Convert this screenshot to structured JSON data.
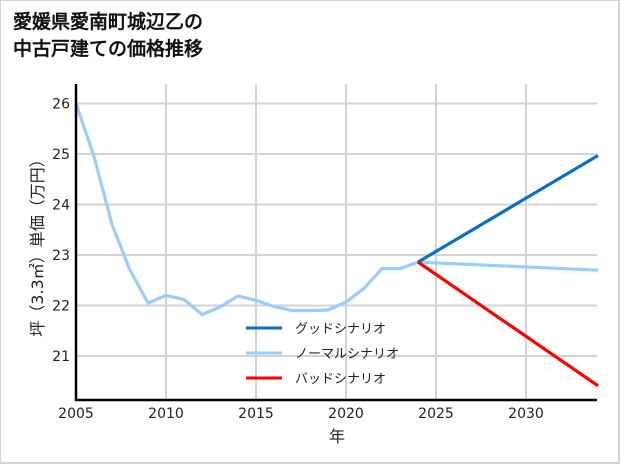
{
  "title": {
    "line1": "愛媛県愛南町城辺乙の",
    "line2": "中古戸建ての価格推移"
  },
  "colors": {
    "good": "#0a6fc2",
    "normal": "#99ccff",
    "bad": "#ff0000",
    "grid": "#d3d3d3",
    "axis": "#000000"
  },
  "chart_data": {
    "type": "line",
    "title": "愛媛県愛南町城辺乙の中古戸建ての価格推移",
    "xlabel": "年",
    "ylabel": "坪（3.3㎡）単価（万円）",
    "xlim": [
      2005,
      2034
    ],
    "ylim": [
      20.1,
      26.4
    ],
    "x_ticks": [
      2005,
      2010,
      2015,
      2020,
      2025,
      2030
    ],
    "y_ticks": [
      21,
      22,
      23,
      24,
      25,
      26
    ],
    "grid": true,
    "legend_position": "lower center",
    "series": [
      {
        "name": "グッドシナリオ",
        "color": "#0a6fc2",
        "x": [
          2024,
          2034
        ],
        "values": [
          22.86,
          24.97
        ]
      },
      {
        "name": "ノーマルシナリオ",
        "color": "#99ccff",
        "x": [
          2005,
          2006,
          2007,
          2008,
          2009,
          2010,
          2011,
          2012,
          2013,
          2014,
          2015,
          2016,
          2017,
          2018,
          2019,
          2020,
          2021,
          2022,
          2023,
          2024,
          2034
        ],
        "values": [
          26.0,
          24.95,
          23.6,
          22.7,
          22.05,
          22.2,
          22.12,
          21.82,
          21.97,
          22.19,
          22.1,
          21.98,
          21.9,
          21.9,
          21.91,
          22.07,
          22.34,
          22.73,
          22.73,
          22.86,
          22.7
        ]
      },
      {
        "name": "バッドシナリオ",
        "color": "#ff0000",
        "x": [
          2024,
          2034
        ],
        "values": [
          22.86,
          20.41
        ]
      }
    ]
  }
}
